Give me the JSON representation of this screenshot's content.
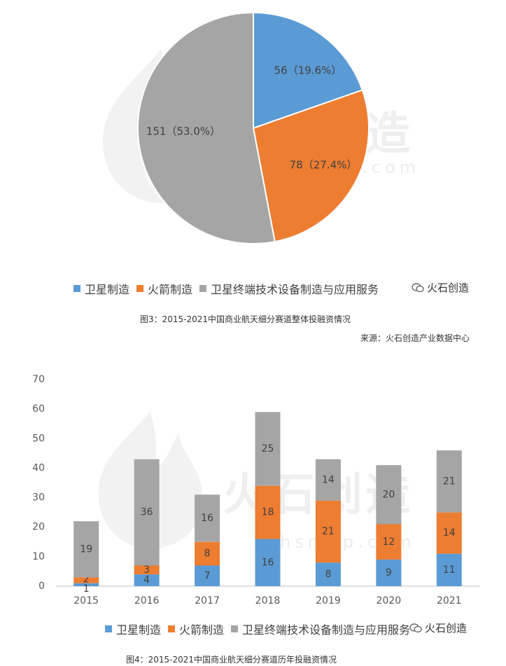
{
  "colors": {
    "satellite": "#5B9BD5",
    "rocket": "#ED7D31",
    "service": "#A5A5A5",
    "axis": "#595959",
    "grid_axis": "#BFBFBF"
  },
  "watermark": {
    "brand": "火石创造",
    "url": "www.hsmap.com",
    "url_partial": "hsmap.com"
  },
  "brand_badge": {
    "icon": "wechat-icon",
    "text": "火石创造"
  },
  "legend": {
    "satellite": "卫星制造",
    "rocket": "火箭制造",
    "service": "卫星终端技术设备制造与应用服务"
  },
  "figure3": {
    "caption": "图3：2015-2021中国商业航天细分赛道整体投融资情况",
    "source": "来源：火石创造产业数据中心"
  },
  "figure4": {
    "caption": "图4：2015-2021中国商业航天细分赛道历年投融资情况"
  },
  "chart_data": [
    {
      "type": "pie",
      "slices": [
        {
          "label": "卫星制造",
          "value": 56,
          "display": "56（19.6%）",
          "color": "#5B9BD5"
        },
        {
          "label": "火箭制造",
          "value": 78,
          "display": "78（27.4%）",
          "color": "#ED7D31"
        },
        {
          "label": "卫星终端技术设备制造与应用服务",
          "value": 151,
          "display": "151（53.0%）",
          "color": "#A5A5A5"
        }
      ],
      "legend_position": "bottom"
    },
    {
      "type": "bar",
      "stacked": true,
      "categories": [
        "2015",
        "2016",
        "2017",
        "2018",
        "2019",
        "2020",
        "2021"
      ],
      "series": [
        {
          "name": "卫星制造",
          "values": [
            1,
            4,
            7,
            16,
            8,
            9,
            11
          ],
          "color": "#5B9BD5"
        },
        {
          "name": "火箭制造",
          "values": [
            2,
            3,
            8,
            18,
            21,
            12,
            14
          ],
          "color": "#ED7D31"
        },
        {
          "name": "卫星终端技术设备制造与应用服务",
          "values": [
            19,
            36,
            16,
            25,
            14,
            20,
            21
          ],
          "color": "#A5A5A5"
        }
      ],
      "ylim": [
        0,
        70
      ],
      "yticks": [
        "0",
        "10",
        "20",
        "30",
        "40",
        "50",
        "60",
        "70"
      ],
      "grid": false,
      "legend_position": "bottom"
    }
  ]
}
